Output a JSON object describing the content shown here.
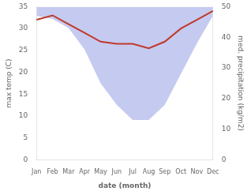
{
  "chart_data": {
    "type": "line",
    "xlabel": "date (month)",
    "ylabel": "max temp (C)",
    "y2label": "med. precipitation (kg/m2)",
    "categories": [
      "Jan",
      "Feb",
      "Mar",
      "Apr",
      "May",
      "Jun",
      "Jul",
      "Aug",
      "Sep",
      "Oct",
      "Nov",
      "Dec"
    ],
    "series": [
      {
        "type": "area",
        "color": "#c5caf0",
        "axis": "y2",
        "values": [
          47,
          46,
          43,
          36,
          25,
          18,
          13,
          13,
          18,
          28,
          38,
          47
        ]
      },
      {
        "type": "line",
        "color": "#c0392b",
        "values": [
          32,
          33,
          31,
          29,
          27,
          26.5,
          26.5,
          25.5,
          27,
          30,
          32,
          34
        ]
      }
    ],
    "ylim": [
      0,
      35
    ],
    "yticks": [
      0,
      5,
      10,
      15,
      20,
      25,
      30,
      35
    ],
    "y2lim": [
      0,
      50
    ],
    "y2ticks": [
      0,
      10,
      20,
      30,
      40,
      50
    ],
    "grid": false
  }
}
